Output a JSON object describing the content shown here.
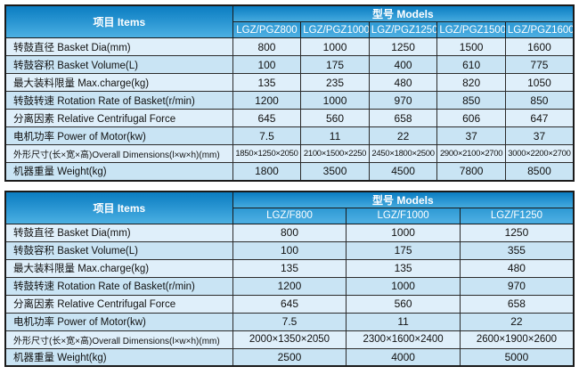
{
  "tables": [
    {
      "items_label": "项目 Items",
      "models_label": "型号 Models",
      "models": [
        "LGZ/PGZ800",
        "LGZ/PGZ1000",
        "LGZ/PGZ1250",
        "LGZ/PGZ1500",
        "LGZ/PGZ1600"
      ],
      "rows": [
        {
          "label": "转鼓直径 Basket Dia(mm)",
          "values": [
            "800",
            "1000",
            "1250",
            "1500",
            "1600"
          ]
        },
        {
          "label": "转鼓容积 Basket Volume(L)",
          "values": [
            "100",
            "175",
            "400",
            "610",
            "775"
          ]
        },
        {
          "label": "最大装料限量 Max.charge(kg)",
          "values": [
            "135",
            "235",
            "480",
            "820",
            "1050"
          ]
        },
        {
          "label": "转鼓转速 Rotation Rate of Basket(r/min)",
          "values": [
            "1200",
            "1000",
            "970",
            "850",
            "850"
          ]
        },
        {
          "label": "分离因素 Relative Centrifugal Force",
          "values": [
            "645",
            "560",
            "658",
            "606",
            "647"
          ]
        },
        {
          "label": "电机功率 Power of Motor(kw)",
          "values": [
            "7.5",
            "11",
            "22",
            "37",
            "37"
          ]
        },
        {
          "label": "外形尺寸(长×宽×高)Overall Dimensions(l×w×h)(mm)",
          "values": [
            "1850×1250×2050",
            "2100×1500×2250",
            "2450×1800×2500",
            "2900×2100×2700",
            "3000×2200×2700"
          ]
        },
        {
          "label": "机器重量 Weight(kg)",
          "values": [
            "1800",
            "3500",
            "4500",
            "7800",
            "8500"
          ]
        }
      ]
    },
    {
      "items_label": "项目 Items",
      "models_label": "型号 Models",
      "models": [
        "LGZ/F800",
        "LGZ/F1000",
        "LGZ/F1250"
      ],
      "rows": [
        {
          "label": "转鼓直径 Basket Dia(mm)",
          "values": [
            "800",
            "1000",
            "1250"
          ]
        },
        {
          "label": "转鼓容积 Basket Volume(L)",
          "values": [
            "100",
            "175",
            "355"
          ]
        },
        {
          "label": "最大装料限量 Max.charge(kg)",
          "values": [
            "135",
            "135",
            "480"
          ]
        },
        {
          "label": "转鼓转速 Rotation Rate of Basket(r/min)",
          "values": [
            "1200",
            "1000",
            "970"
          ]
        },
        {
          "label": "分离因素 Relative Centrifugal Force",
          "values": [
            "645",
            "560",
            "658"
          ]
        },
        {
          "label": "电机功率 Power of Motor(kw)",
          "values": [
            "7.5",
            "11",
            "22"
          ]
        },
        {
          "label": "外形尺寸(长×宽×高)Overall Dimensions(l×w×h)(mm)",
          "values": [
            "2000×1350×2050",
            "2300×1600×2400",
            "2600×1900×2600"
          ]
        },
        {
          "label": "机器重量 Weight(kg)",
          "values": [
            "2500",
            "4000",
            "5000"
          ]
        }
      ]
    }
  ],
  "colors": {
    "header_gradient_top": "#0b7dc1",
    "header_gradient_bottom": "#45aadd",
    "row_odd": "#dfeffa",
    "row_even": "#c9e4f4",
    "border": "#1a1a1a",
    "header_text": "#ffffff",
    "body_text": "#111111"
  }
}
